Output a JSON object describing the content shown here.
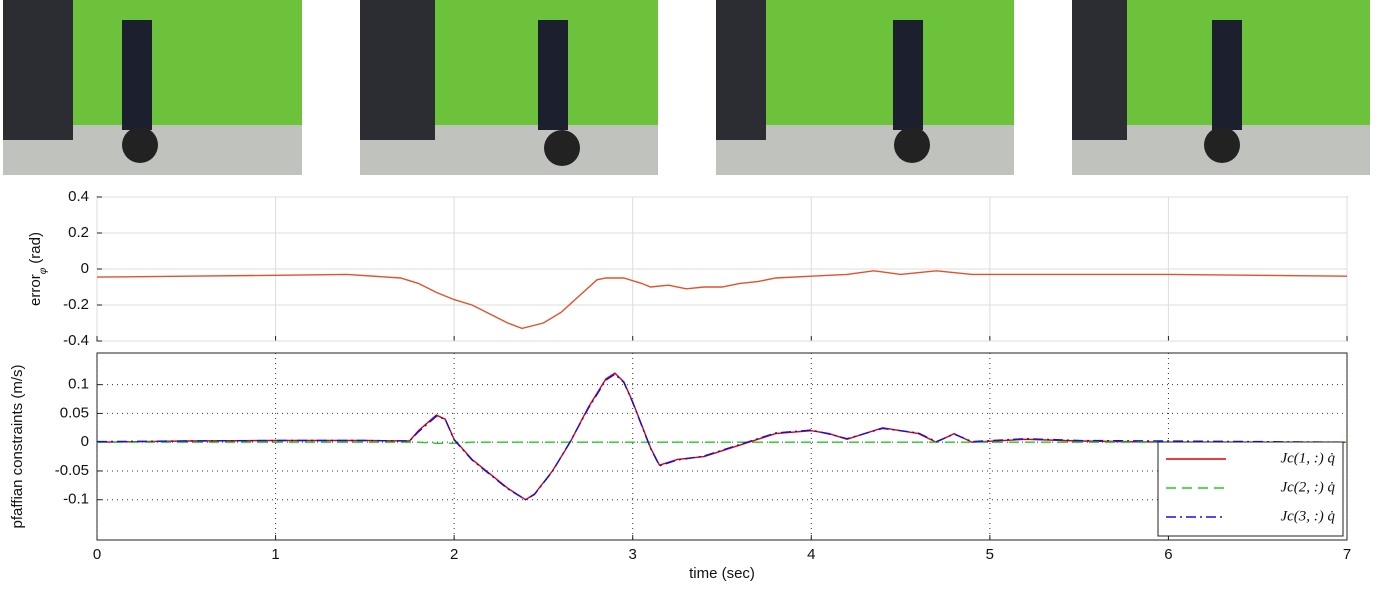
{
  "chart_data": [
    {
      "type": "line",
      "ylabel": [
        "error",
        "φ",
        "(rad)"
      ],
      "xlim": [
        0,
        7
      ],
      "xticks": [
        0,
        1,
        2,
        3,
        4,
        5,
        6,
        7
      ],
      "xticklabels": false,
      "ylim": [
        -0.4,
        0.4
      ],
      "yticks": [
        -0.4,
        -0.2,
        0,
        0.2,
        0.4
      ],
      "grid": "solid",
      "x": [
        0,
        0.5,
        1,
        1.4,
        1.7,
        1.8,
        1.9,
        2.0,
        2.1,
        2.2,
        2.3,
        2.38,
        2.5,
        2.6,
        2.7,
        2.8,
        2.85,
        2.95,
        3.05,
        3.1,
        3.2,
        3.3,
        3.4,
        3.5,
        3.6,
        3.7,
        3.8,
        4.0,
        4.2,
        4.35,
        4.5,
        4.7,
        4.9,
        5.2,
        5.5,
        6,
        6.5,
        7
      ],
      "series": [
        {
          "color": "#e0522a",
          "values": [
            -0.045,
            -0.04,
            -0.035,
            -0.03,
            -0.05,
            -0.08,
            -0.13,
            -0.17,
            -0.2,
            -0.25,
            -0.3,
            -0.33,
            -0.3,
            -0.24,
            -0.15,
            -0.06,
            -0.05,
            -0.05,
            -0.08,
            -0.1,
            -0.09,
            -0.11,
            -0.1,
            -0.1,
            -0.08,
            -0.07,
            -0.05,
            -0.04,
            -0.03,
            -0.01,
            -0.03,
            -0.01,
            -0.03,
            -0.03,
            -0.03,
            -0.03,
            -0.035,
            -0.04
          ]
        }
      ]
    },
    {
      "type": "line",
      "xlabel": "time (sec)",
      "ylabel": [
        "pfaffian constraints (m/s)"
      ],
      "xlim": [
        0,
        7
      ],
      "xticks": [
        0,
        1,
        2,
        3,
        4,
        5,
        6,
        7
      ],
      "xticklabels": true,
      "ylim": [
        -0.17,
        0.155
      ],
      "yticks": [
        -0.1,
        -0.05,
        0,
        0.05,
        0.1
      ],
      "grid": "dotted",
      "legend": "lower right",
      "x": [
        0,
        0.5,
        1,
        1.5,
        1.75,
        1.8,
        1.9,
        1.95,
        2.0,
        2.1,
        2.2,
        2.3,
        2.4,
        2.45,
        2.55,
        2.65,
        2.75,
        2.85,
        2.9,
        2.95,
        3.0,
        3.1,
        3.15,
        3.25,
        3.4,
        3.6,
        3.8,
        4.0,
        4.1,
        4.2,
        4.4,
        4.6,
        4.7,
        4.8,
        4.9,
        5.2,
        5.5,
        6,
        6.5,
        7
      ],
      "series": [
        {
          "name": "Jc(1, :) q̇",
          "color": "#e00000",
          "dash": "solid",
          "values": [
            0,
            0.002,
            0.003,
            0.003,
            0.002,
            0.02,
            0.047,
            0.04,
            0.005,
            -0.03,
            -0.055,
            -0.08,
            -0.1,
            -0.09,
            -0.05,
            0.0,
            0.06,
            0.11,
            0.12,
            0.105,
            0.07,
            -0.01,
            -0.04,
            -0.03,
            -0.025,
            -0.005,
            0.015,
            0.02,
            0.015,
            0.005,
            0.025,
            0.015,
            0.0,
            0.015,
            0.0,
            0.005,
            0.002,
            0.0,
            0.0,
            0.0
          ]
        },
        {
          "name": "Jc(2, :) q̇",
          "color": "#22cc22",
          "dash": "dashed",
          "values": [
            0,
            0,
            0,
            0,
            0,
            0,
            -0.002,
            -0.002,
            -0.002,
            0,
            0,
            0,
            0,
            0,
            0,
            0,
            0,
            0,
            0,
            0,
            0,
            0,
            0,
            0,
            0,
            0,
            0,
            0,
            0,
            0,
            0,
            0,
            0,
            0,
            0,
            0,
            0,
            0,
            0,
            0
          ]
        },
        {
          "name": "Jc(3, :) q̇",
          "color": "#1010e0",
          "dash": "dashdot",
          "values": [
            0.001,
            0.002,
            0.003,
            0.003,
            0.002,
            0.018,
            0.045,
            0.04,
            0.004,
            -0.031,
            -0.056,
            -0.081,
            -0.1,
            -0.091,
            -0.051,
            0.001,
            0.058,
            0.108,
            0.118,
            0.104,
            0.069,
            -0.011,
            -0.041,
            -0.031,
            -0.024,
            -0.004,
            0.016,
            0.021,
            0.014,
            0.006,
            0.024,
            0.016,
            0.001,
            0.014,
            0.001,
            0.006,
            0.003,
            0.002,
            0.001,
            0.0
          ]
        }
      ]
    }
  ]
}
